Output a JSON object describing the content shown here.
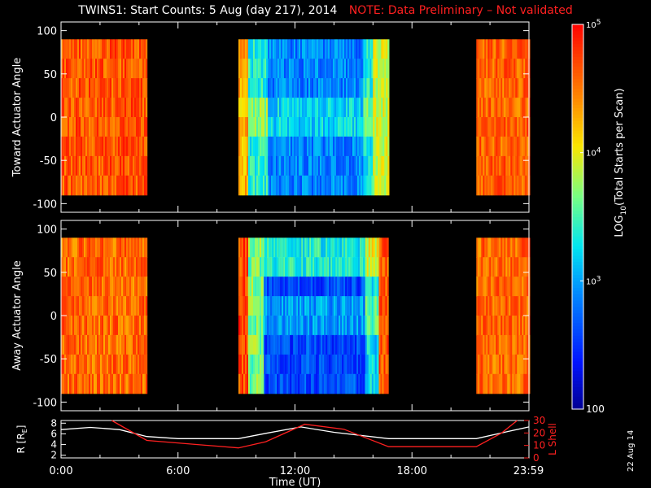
{
  "title": "TWINS1: Start Counts:  5 Aug (day 217), 2014",
  "note": "NOTE: Data Preliminary – Not validated",
  "date_stamp": "22 Aug 14",
  "chart_data": [
    {
      "type": "heatmap",
      "ylabel": "Toward Actuator Angle",
      "ylim": [
        -110,
        110
      ],
      "yticks": [
        -100,
        -50,
        0,
        50,
        100
      ],
      "xlim": [
        0,
        24
      ],
      "angle_range": [
        -90,
        90
      ],
      "data_intervals_hours": [
        [
          0.0,
          4.4
        ],
        [
          9.1,
          16.8
        ],
        [
          21.3,
          24.0
        ]
      ],
      "colorscale": "log10 100 to 100000, rainbow (blue low, red high)",
      "bands": [
        {
          "x": [
            0.0,
            4.4
          ],
          "level": 0.88
        },
        {
          "x": [
            9.1,
            9.6
          ],
          "level": 0.75
        },
        {
          "x": [
            9.6,
            10.6
          ],
          "level": 0.45
        },
        {
          "x": [
            10.6,
            15.5
          ],
          "level": 0.28
        },
        {
          "x": [
            15.5,
            16.0
          ],
          "level": 0.45
        },
        {
          "x": [
            16.0,
            16.8
          ],
          "level": 0.62
        },
        {
          "x": [
            21.3,
            24.0
          ],
          "level": 0.86
        }
      ]
    },
    {
      "type": "heatmap",
      "ylabel": "Away Actuator Angle",
      "ylim": [
        -110,
        110
      ],
      "yticks": [
        -100,
        -50,
        0,
        50,
        100
      ],
      "xlim": [
        0,
        24
      ],
      "angle_range": [
        -90,
        90
      ],
      "data_intervals_hours": [
        [
          0.0,
          4.4
        ],
        [
          9.1,
          16.8
        ],
        [
          21.3,
          24.0
        ]
      ],
      "colorscale": "log10 100 to 100000, rainbow (blue low, red high)",
      "bands": [
        {
          "x": [
            0.0,
            4.4
          ],
          "level": 0.85
        },
        {
          "x": [
            9.1,
            9.6
          ],
          "level": 0.9
        },
        {
          "x": [
            9.6,
            10.4
          ],
          "level": 0.55
        },
        {
          "x": [
            10.4,
            15.6
          ],
          "level": 0.2
        },
        {
          "x": [
            15.6,
            16.3
          ],
          "level": 0.4
        },
        {
          "x": [
            16.3,
            16.8
          ],
          "level": 0.88
        },
        {
          "x": [
            21.3,
            24.0
          ],
          "level": 0.85
        }
      ]
    },
    {
      "type": "line",
      "xlabel": "Time (UT)",
      "xlim": [
        0,
        24
      ],
      "xticks": [
        "0:00",
        "6:00",
        "12:00",
        "18:00",
        "23:59"
      ],
      "xtick_values": [
        0,
        6,
        12,
        18,
        23.98
      ],
      "ylabel": "R [R",
      "ylabel_sub": "E",
      "ylabel_end": "]",
      "ylim": [
        1.5,
        8.5
      ],
      "yticks": [
        2,
        4,
        6,
        8
      ],
      "y2label": "L Shell",
      "y2lim": [
        0,
        30
      ],
      "y2ticks": [
        0,
        10,
        20,
        30
      ],
      "series": [
        {
          "color": "#ffffff",
          "x": [
            0,
            1.5,
            3,
            4.4,
            6,
            9.1,
            10.5,
            12.3,
            14,
            16.8,
            18,
            21.3,
            23,
            24
          ],
          "values": [
            6.8,
            7.2,
            6.8,
            5.5,
            5.1,
            5.1,
            6.1,
            7.3,
            6.3,
            5.1,
            5.1,
            5.1,
            6.5,
            7.3
          ]
        },
        {
          "color": "#ff2020",
          "axis": "right",
          "x": [
            2.6,
            4.4,
            9.1,
            10.5,
            12.5,
            14.5,
            16.8,
            18,
            21.3,
            22.6,
            23.4
          ],
          "values": [
            30,
            14,
            8,
            13,
            27,
            23,
            9,
            9,
            9,
            20,
            30
          ]
        }
      ]
    },
    {
      "type": "colorbar",
      "label": "LOG",
      "label_sub": "10",
      "label_rest": "(Total Starts per Scan)",
      "range": [
        100,
        100000
      ],
      "ticks": [
        {
          "value": 100,
          "label": "100"
        },
        {
          "value": 1000,
          "base": "10",
          "exp": "3"
        },
        {
          "value": 10000,
          "base": "10",
          "exp": "4"
        },
        {
          "value": 100000,
          "base": "10",
          "exp": "5"
        }
      ]
    }
  ]
}
